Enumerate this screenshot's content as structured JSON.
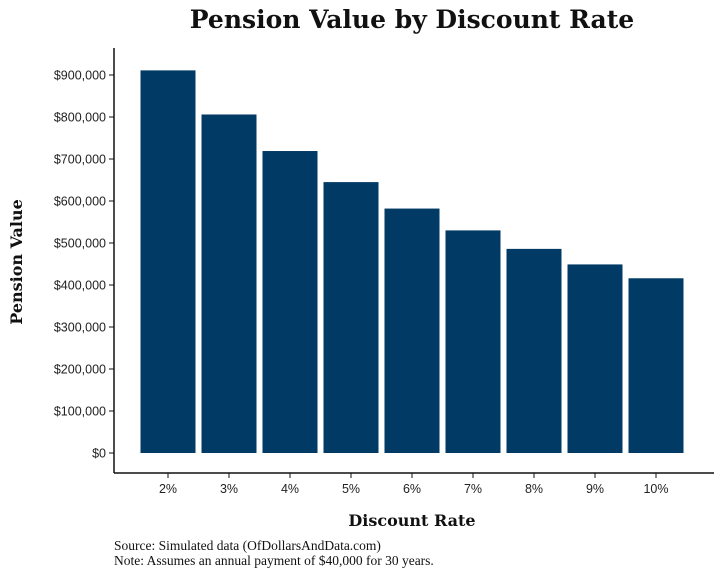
{
  "chart_data": {
    "type": "bar",
    "title": "Pension Value by Discount Rate",
    "xlabel": "Discount Rate",
    "ylabel": "Pension Value",
    "categories": [
      "2%",
      "3%",
      "4%",
      "5%",
      "6%",
      "7%",
      "8%",
      "9%",
      "10%"
    ],
    "values": [
      911000,
      806000,
      719000,
      645000,
      582000,
      530000,
      486000,
      449000,
      416000
    ],
    "ylim": [
      0,
      900000
    ],
    "yticks": [
      0,
      100000,
      200000,
      300000,
      400000,
      500000,
      600000,
      700000,
      800000,
      900000
    ],
    "ytick_labels": [
      "$0",
      "$100,000",
      "$200,000",
      "$300,000",
      "$400,000",
      "$500,000",
      "$600,000",
      "$700,000",
      "$800,000",
      "$900,000"
    ],
    "bar_color": "#023a66",
    "grid": false,
    "legend": false
  },
  "notes": {
    "source": "Source:  Simulated data (OfDollarsAndData.com)",
    "note": "Note: Assumes an annual payment of $40,000 for 30 years."
  }
}
